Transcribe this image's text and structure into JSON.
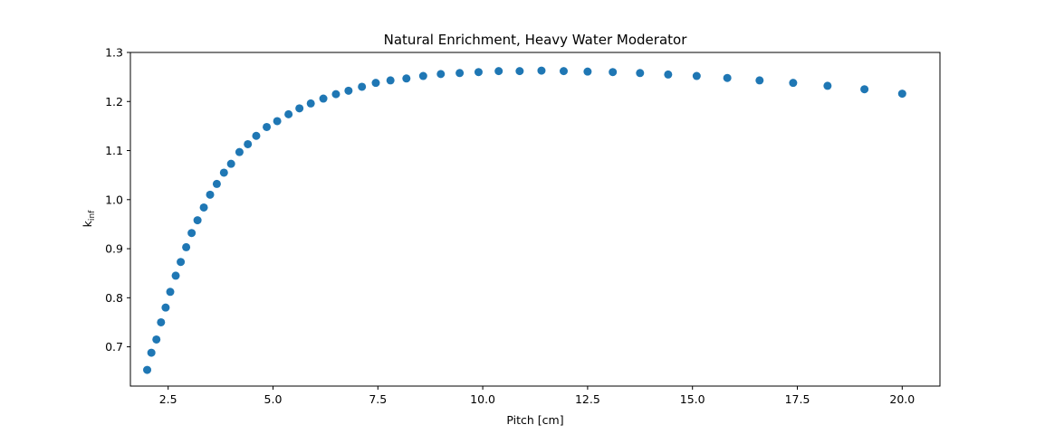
{
  "chart_data": {
    "type": "scatter",
    "title": "Natural Enrichment, Heavy Water Moderator",
    "xlabel": "Pitch [cm]",
    "ylabel_main": "k",
    "ylabel_sub": "inf",
    "xlim": [
      1.6,
      20.9
    ],
    "ylim": [
      0.62,
      1.3
    ],
    "xticks": [
      2.5,
      5.0,
      7.5,
      10.0,
      12.5,
      15.0,
      17.5,
      20.0
    ],
    "xtick_labels": [
      "2.5",
      "5.0",
      "7.5",
      "10.0",
      "12.5",
      "15.0",
      "17.5",
      "20.0"
    ],
    "yticks": [
      0.7,
      0.8,
      0.9,
      1.0,
      1.1,
      1.2,
      1.3
    ],
    "ytick_labels": [
      "0.7",
      "0.8",
      "0.9",
      "1.0",
      "1.1",
      "1.2",
      "1.3"
    ],
    "marker_color": "#1f77b4",
    "grid": false,
    "legend": "none",
    "series": [
      {
        "x": [
          2.0,
          2.1,
          2.22,
          2.33,
          2.44,
          2.55,
          2.68,
          2.8,
          2.93,
          3.06,
          3.2,
          3.35,
          3.5,
          3.66,
          3.83,
          4.0,
          4.2,
          4.4,
          4.6,
          4.85,
          5.1,
          5.37,
          5.63,
          5.9,
          6.2,
          6.5,
          6.8,
          7.12,
          7.45,
          7.8,
          8.18,
          8.58,
          9.0,
          9.45,
          9.9,
          10.38,
          10.88,
          11.4,
          11.93,
          12.5,
          13.1,
          13.75,
          14.42,
          15.1,
          15.83,
          16.6,
          17.4,
          18.22,
          19.1,
          20.0
        ],
        "y": [
          0.653,
          0.688,
          0.715,
          0.75,
          0.78,
          0.812,
          0.845,
          0.873,
          0.903,
          0.932,
          0.958,
          0.984,
          1.01,
          1.032,
          1.055,
          1.073,
          1.097,
          1.113,
          1.13,
          1.148,
          1.16,
          1.174,
          1.186,
          1.196,
          1.206,
          1.215,
          1.222,
          1.23,
          1.238,
          1.243,
          1.247,
          1.252,
          1.256,
          1.258,
          1.26,
          1.262,
          1.262,
          1.263,
          1.262,
          1.261,
          1.26,
          1.258,
          1.255,
          1.252,
          1.248,
          1.243,
          1.238,
          1.232,
          1.225,
          1.216
        ]
      }
    ]
  }
}
